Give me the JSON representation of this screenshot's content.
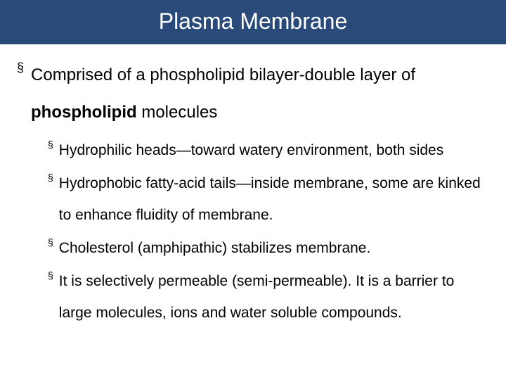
{
  "title": "Plasma Membrane",
  "colors": {
    "titlebar_bg": "#2a4a7a",
    "titlebar_text": "#ffffff",
    "body_bg": "#ffffff",
    "text": "#000000"
  },
  "typography": {
    "title_fontsize": 32,
    "main_fontsize": 24,
    "sub_fontsize": 21,
    "font_family": "Arial"
  },
  "bullet_marker": "§",
  "main_points": [
    {
      "prefix": "Comprised of a phospholipid bilayer-double layer of ",
      "bold": "phospholipid",
      "suffix": " molecules"
    }
  ],
  "sub_points": [
    "Hydrophilic heads—toward watery environment, both sides",
    "Hydrophobic fatty-acid tails—inside membrane, some are kinked to enhance fluidity of membrane.",
    "Cholesterol (amphipathic) stabilizes membrane.",
    "It is selectively permeable (semi-permeable).  It is a barrier to large molecules, ions and water soluble compounds."
  ]
}
